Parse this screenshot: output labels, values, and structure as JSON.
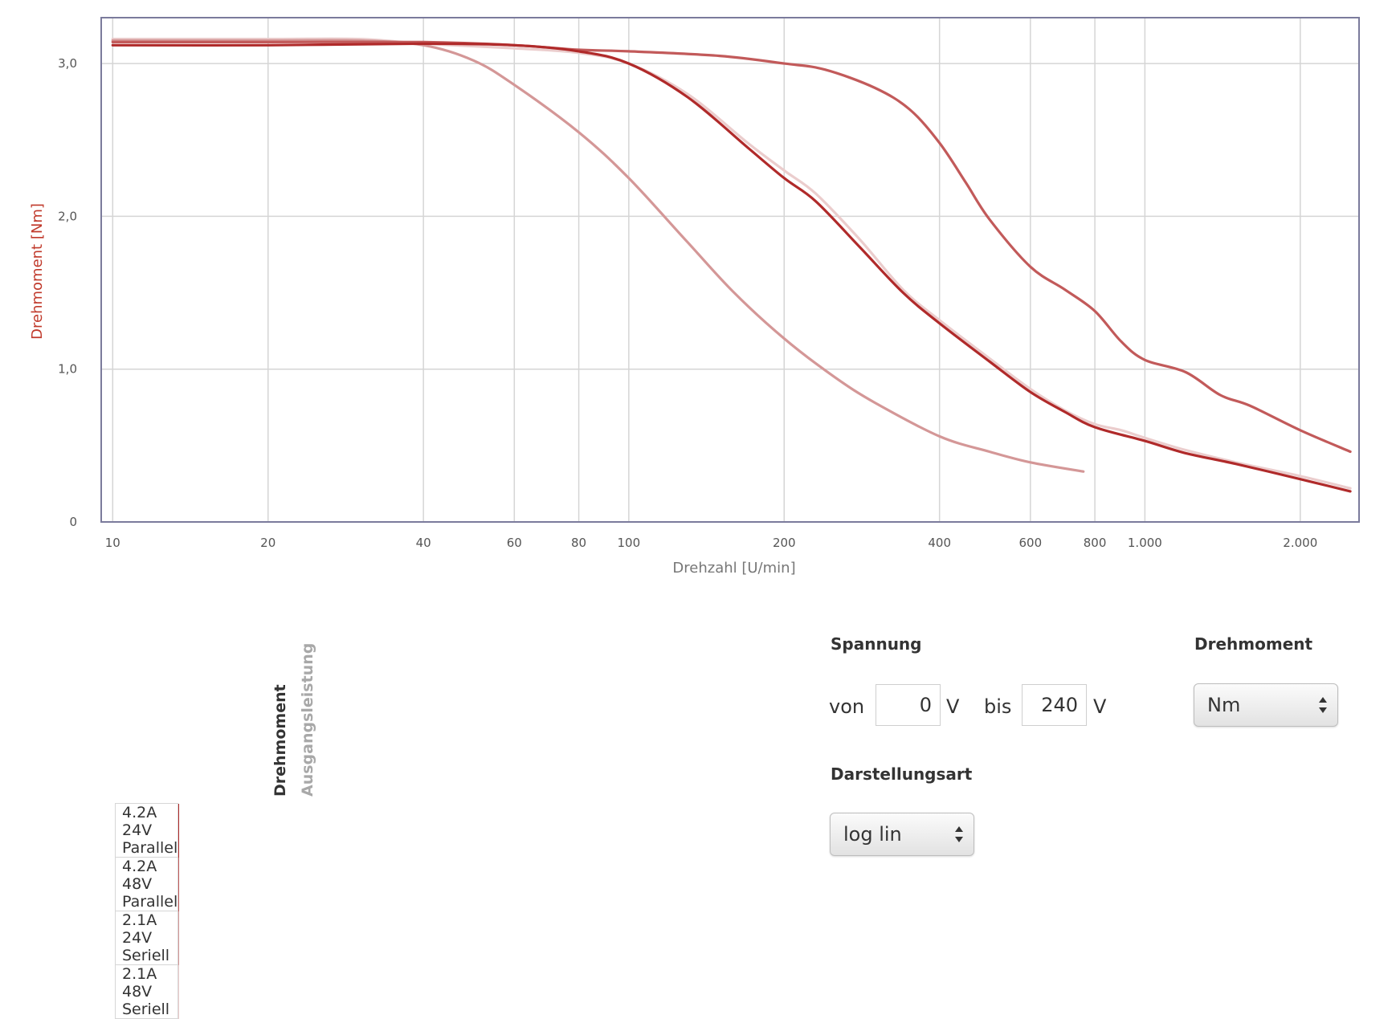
{
  "chart_data": {
    "type": "line",
    "xscale": "log",
    "xlabel": "Drehzahl [U/min]",
    "ylabel": "Drehmoment [Nm]",
    "xlim": [
      9.5,
      2600
    ],
    "ylim": [
      0,
      3.3
    ],
    "xticks": [
      {
        "v": 10,
        "label": "10"
      },
      {
        "v": 20,
        "label": "20"
      },
      {
        "v": 40,
        "label": "40"
      },
      {
        "v": 60,
        "label": "60"
      },
      {
        "v": 80,
        "label": "80"
      },
      {
        "v": 100,
        "label": "100"
      },
      {
        "v": 200,
        "label": "200"
      },
      {
        "v": 400,
        "label": "400"
      },
      {
        "v": 600,
        "label": "600"
      },
      {
        "v": 800,
        "label": "800"
      },
      {
        "v": 1000,
        "label": "1.000"
      },
      {
        "v": 2000,
        "label": "2.000"
      }
    ],
    "yticks": [
      {
        "v": 0,
        "label": "0"
      },
      {
        "v": 1.0,
        "label": "1,0"
      },
      {
        "v": 2.0,
        "label": "2,0"
      },
      {
        "v": 3.0,
        "label": "3,0"
      }
    ],
    "grid": true,
    "series": [
      {
        "name": "4.2A 24V Parallel",
        "color": "#b02a2a",
        "x": [
          10,
          20,
          40,
          60,
          80,
          100,
          130,
          170,
          200,
          230,
          280,
          340,
          400,
          500,
          600,
          700,
          800,
          1000,
          1200,
          1500,
          2000,
          2500
        ],
        "y": [
          3.12,
          3.12,
          3.13,
          3.12,
          3.08,
          3.0,
          2.78,
          2.45,
          2.25,
          2.1,
          1.8,
          1.5,
          1.3,
          1.05,
          0.85,
          0.72,
          0.62,
          0.53,
          0.45,
          0.38,
          0.28,
          0.2
        ]
      },
      {
        "name": "4.2A 48V Parallel",
        "color": "#c25a5a",
        "x": [
          10,
          20,
          40,
          60,
          80,
          100,
          150,
          200,
          240,
          300,
          350,
          400,
          450,
          500,
          600,
          700,
          800,
          900,
          1000,
          1200,
          1400,
          1600,
          2000,
          2500
        ],
        "y": [
          3.14,
          3.14,
          3.14,
          3.12,
          3.09,
          3.08,
          3.05,
          3.0,
          2.96,
          2.84,
          2.7,
          2.48,
          2.22,
          1.98,
          1.67,
          1.52,
          1.38,
          1.18,
          1.06,
          0.98,
          0.83,
          0.76,
          0.6,
          0.46
        ]
      },
      {
        "name": "2.1A 24V Seriell",
        "color": "#d49797",
        "x": [
          10,
          20,
          30,
          40,
          50,
          60,
          80,
          100,
          130,
          160,
          200,
          250,
          300,
          400,
          500,
          600,
          760
        ],
        "y": [
          3.15,
          3.15,
          3.15,
          3.12,
          3.02,
          2.86,
          2.55,
          2.25,
          1.83,
          1.5,
          1.2,
          0.95,
          0.78,
          0.56,
          0.46,
          0.39,
          0.33
        ]
      },
      {
        "name": "2.1A 48V Seriell",
        "color": "#ebcdcd",
        "x": [
          10,
          20,
          30,
          40,
          60,
          80,
          100,
          130,
          170,
          200,
          230,
          280,
          340,
          400,
          500,
          600,
          700,
          800,
          900,
          1000,
          1200,
          1500,
          2000,
          2500
        ],
        "y": [
          3.16,
          3.16,
          3.16,
          3.13,
          3.1,
          3.07,
          3.0,
          2.8,
          2.48,
          2.3,
          2.15,
          1.85,
          1.52,
          1.32,
          1.07,
          0.87,
          0.73,
          0.64,
          0.6,
          0.55,
          0.47,
          0.39,
          0.3,
          0.22
        ]
      }
    ]
  },
  "legend": {
    "header_torque": "Drehmoment",
    "header_power": "Ausgangsleistung",
    "items": [
      {
        "label": "4.2A 24V Parallel",
        "color": "#b02a2a"
      },
      {
        "label": "4.2A 48V Parallel",
        "color": "#c25a5a"
      },
      {
        "label": "2.1A 24V Seriell",
        "color": "#d49797"
      },
      {
        "label": "2.1A 48V Seriell",
        "color": "#ebcdcd"
      }
    ]
  },
  "controls": {
    "voltage": {
      "title": "Spannung",
      "from_label": "von",
      "from_value": "0",
      "from_unit": "V",
      "to_label": "bis",
      "to_value": "240",
      "to_unit": "V"
    },
    "display_mode": {
      "title": "Darstellungsart",
      "selected": "log lin"
    },
    "torque_unit": {
      "title": "Drehmoment",
      "selected": "Nm"
    }
  },
  "colors": {
    "axis_title_y": "#c0392b",
    "axis_title_x": "#777777",
    "plot_border": "#7b7b9c",
    "grid": "#d5d5d5"
  }
}
